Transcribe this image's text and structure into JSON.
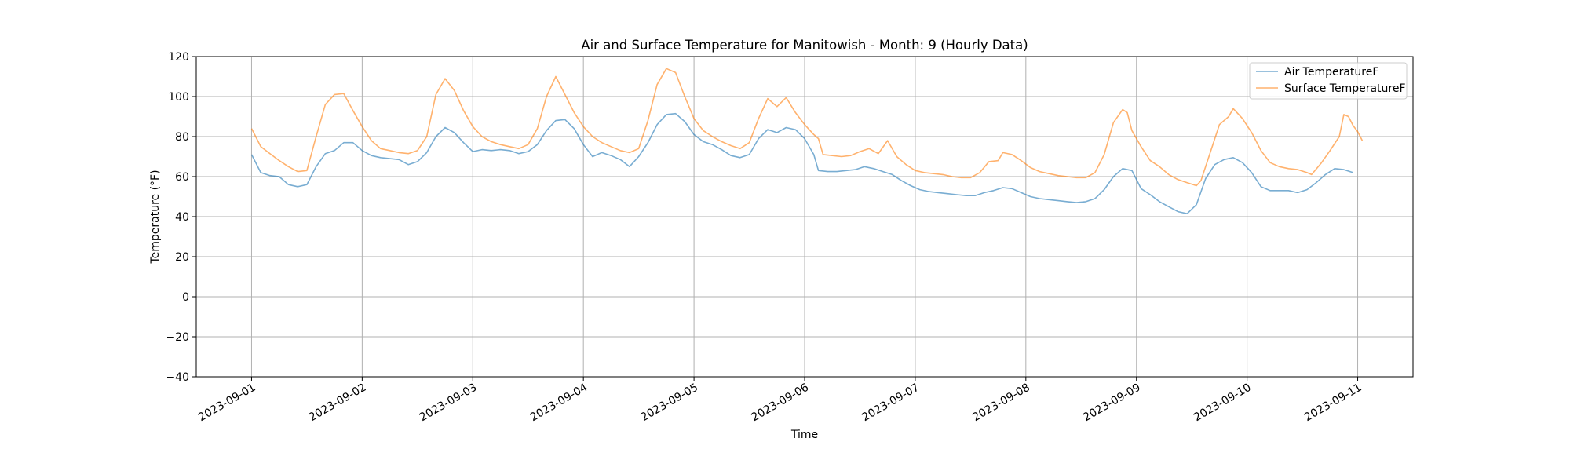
{
  "chart_data": {
    "type": "line",
    "title": "Air and Surface Temperature for Manitowish - Month: 9 (Hourly Data)",
    "xlabel": "Time",
    "ylabel": "Temperature (°F)",
    "xlim": [
      "2023-08-31T12:00",
      "2023-09-11T12:00"
    ],
    "ylim": [
      -40,
      120
    ],
    "yticks": [
      -40,
      -20,
      0,
      20,
      40,
      60,
      80,
      100,
      120
    ],
    "xticks": [
      "2023-09-01",
      "2023-09-02",
      "2023-09-03",
      "2023-09-04",
      "2023-09-05",
      "2023-09-06",
      "2023-09-07",
      "2023-09-08",
      "2023-09-09",
      "2023-09-10",
      "2023-09-11"
    ],
    "grid": true,
    "legend_position": "top-right",
    "series": [
      {
        "name": "Air TemperatureF",
        "color": "#1f77b4",
        "points": [
          [
            "2023-09-01T00:00",
            71
          ],
          [
            "2023-09-01T02:00",
            62
          ],
          [
            "2023-09-01T04:00",
            60.5
          ],
          [
            "2023-09-01T06:00",
            60
          ],
          [
            "2023-09-01T08:00",
            56
          ],
          [
            "2023-09-01T10:00",
            55
          ],
          [
            "2023-09-01T12:00",
            56
          ],
          [
            "2023-09-01T14:00",
            65
          ],
          [
            "2023-09-01T16:00",
            71.5
          ],
          [
            "2023-09-01T18:00",
            73
          ],
          [
            "2023-09-01T20:00",
            77
          ],
          [
            "2023-09-01T22:00",
            77
          ],
          [
            "2023-09-02T00:00",
            73
          ],
          [
            "2023-09-02T02:00",
            70.5
          ],
          [
            "2023-09-02T04:00",
            69.5
          ],
          [
            "2023-09-02T06:00",
            69
          ],
          [
            "2023-09-02T08:00",
            68.5
          ],
          [
            "2023-09-02T10:00",
            66
          ],
          [
            "2023-09-02T12:00",
            67.5
          ],
          [
            "2023-09-02T14:00",
            72
          ],
          [
            "2023-09-02T16:00",
            80
          ],
          [
            "2023-09-02T18:00",
            84.5
          ],
          [
            "2023-09-02T20:00",
            82
          ],
          [
            "2023-09-02T22:00",
            77
          ],
          [
            "2023-09-03T00:00",
            72.5
          ],
          [
            "2023-09-03T02:00",
            73.5
          ],
          [
            "2023-09-03T04:00",
            73
          ],
          [
            "2023-09-03T06:00",
            73.5
          ],
          [
            "2023-09-03T08:00",
            73
          ],
          [
            "2023-09-03T10:00",
            71.5
          ],
          [
            "2023-09-03T12:00",
            72.5
          ],
          [
            "2023-09-03T14:00",
            76
          ],
          [
            "2023-09-03T16:00",
            83
          ],
          [
            "2023-09-03T18:00",
            88
          ],
          [
            "2023-09-03T20:00",
            88.5
          ],
          [
            "2023-09-03T22:00",
            84
          ],
          [
            "2023-09-04T00:00",
            76
          ],
          [
            "2023-09-04T02:00",
            70
          ],
          [
            "2023-09-04T04:00",
            72
          ],
          [
            "2023-09-04T06:00",
            70.5
          ],
          [
            "2023-09-04T08:00",
            68.5
          ],
          [
            "2023-09-04T10:00",
            65
          ],
          [
            "2023-09-04T12:00",
            70
          ],
          [
            "2023-09-04T14:00",
            77
          ],
          [
            "2023-09-04T16:00",
            86
          ],
          [
            "2023-09-04T18:00",
            91
          ],
          [
            "2023-09-04T20:00",
            91.5
          ],
          [
            "2023-09-04T22:00",
            87.5
          ],
          [
            "2023-09-05T00:00",
            81
          ],
          [
            "2023-09-05T02:00",
            77.5
          ],
          [
            "2023-09-05T04:00",
            76
          ],
          [
            "2023-09-05T06:00",
            73.5
          ],
          [
            "2023-09-05T08:00",
            70.5
          ],
          [
            "2023-09-05T10:00",
            69.5
          ],
          [
            "2023-09-05T12:00",
            71
          ],
          [
            "2023-09-05T14:00",
            79
          ],
          [
            "2023-09-05T16:00",
            83.5
          ],
          [
            "2023-09-05T18:00",
            82
          ],
          [
            "2023-09-05T20:00",
            84.5
          ],
          [
            "2023-09-05T22:00",
            83.5
          ],
          [
            "2023-09-06T00:00",
            79
          ],
          [
            "2023-09-06T02:00",
            71
          ],
          [
            "2023-09-06T03:00",
            63
          ],
          [
            "2023-09-06T05:00",
            62.5
          ],
          [
            "2023-09-06T07:00",
            62.5
          ],
          [
            "2023-09-06T09:00",
            63
          ],
          [
            "2023-09-06T11:00",
            63.5
          ],
          [
            "2023-09-06T13:00",
            65
          ],
          [
            "2023-09-06T15:00",
            64
          ],
          [
            "2023-09-06T17:00",
            62.5
          ],
          [
            "2023-09-06T19:00",
            61
          ],
          [
            "2023-09-06T21:00",
            58
          ],
          [
            "2023-09-06T23:00",
            55.5
          ],
          [
            "2023-09-07T01:00",
            53.5
          ],
          [
            "2023-09-07T03:00",
            52.5
          ],
          [
            "2023-09-07T05:00",
            52
          ],
          [
            "2023-09-07T07:00",
            51.5
          ],
          [
            "2023-09-07T09:00",
            51
          ],
          [
            "2023-09-07T11:00",
            50.5
          ],
          [
            "2023-09-07T13:00",
            50.5
          ],
          [
            "2023-09-07T15:00",
            52
          ],
          [
            "2023-09-07T17:00",
            53
          ],
          [
            "2023-09-07T19:00",
            54.5
          ],
          [
            "2023-09-07T21:00",
            54
          ],
          [
            "2023-09-07T23:00",
            52
          ],
          [
            "2023-09-08T01:00",
            50
          ],
          [
            "2023-09-08T03:00",
            49
          ],
          [
            "2023-09-08T05:00",
            48.5
          ],
          [
            "2023-09-08T07:00",
            48
          ],
          [
            "2023-09-08T09:00",
            47.5
          ],
          [
            "2023-09-08T11:00",
            47
          ],
          [
            "2023-09-08T13:00",
            47.5
          ],
          [
            "2023-09-08T15:00",
            49
          ],
          [
            "2023-09-08T17:00",
            53.5
          ],
          [
            "2023-09-08T19:00",
            60
          ],
          [
            "2023-09-08T21:00",
            64
          ],
          [
            "2023-09-08T23:00",
            63
          ],
          [
            "2023-09-09T01:00",
            54
          ],
          [
            "2023-09-09T03:00",
            51
          ],
          [
            "2023-09-09T05:00",
            47.5
          ],
          [
            "2023-09-09T07:00",
            45
          ],
          [
            "2023-09-09T09:00",
            42.5
          ],
          [
            "2023-09-09T11:00",
            41.5
          ],
          [
            "2023-09-09T13:00",
            46
          ],
          [
            "2023-09-09T15:00",
            59
          ],
          [
            "2023-09-09T17:00",
            66
          ],
          [
            "2023-09-09T19:00",
            68.5
          ],
          [
            "2023-09-09T21:00",
            69.5
          ],
          [
            "2023-09-09T23:00",
            67
          ],
          [
            "2023-09-10T01:00",
            62
          ],
          [
            "2023-09-10T03:00",
            55
          ],
          [
            "2023-09-10T05:00",
            53
          ],
          [
            "2023-09-10T07:00",
            53
          ],
          [
            "2023-09-10T09:00",
            53
          ],
          [
            "2023-09-10T11:00",
            52
          ],
          [
            "2023-09-10T13:00",
            53.5
          ],
          [
            "2023-09-10T15:00",
            57
          ],
          [
            "2023-09-10T17:00",
            61
          ],
          [
            "2023-09-10T19:00",
            64
          ],
          [
            "2023-09-10T21:00",
            63.5
          ],
          [
            "2023-09-10T23:00",
            62
          ]
        ]
      },
      {
        "name": "Surface TemperatureF",
        "color": "#ff7f0e",
        "points": [
          [
            "2023-09-01T00:00",
            84
          ],
          [
            "2023-09-01T02:00",
            75
          ],
          [
            "2023-09-01T04:00",
            71.5
          ],
          [
            "2023-09-01T06:00",
            68
          ],
          [
            "2023-09-01T08:00",
            65
          ],
          [
            "2023-09-01T10:00",
            62.5
          ],
          [
            "2023-09-01T12:00",
            63
          ],
          [
            "2023-09-01T14:00",
            80
          ],
          [
            "2023-09-01T16:00",
            96
          ],
          [
            "2023-09-01T18:00",
            101
          ],
          [
            "2023-09-01T20:00",
            101.5
          ],
          [
            "2023-09-01T22:00",
            93
          ],
          [
            "2023-09-02T00:00",
            85
          ],
          [
            "2023-09-02T02:00",
            78
          ],
          [
            "2023-09-02T04:00",
            74
          ],
          [
            "2023-09-02T06:00",
            73
          ],
          [
            "2023-09-02T08:00",
            72
          ],
          [
            "2023-09-02T10:00",
            71.5
          ],
          [
            "2023-09-02T12:00",
            73
          ],
          [
            "2023-09-02T14:00",
            80
          ],
          [
            "2023-09-02T16:00",
            101
          ],
          [
            "2023-09-02T18:00",
            109
          ],
          [
            "2023-09-02T20:00",
            103
          ],
          [
            "2023-09-02T22:00",
            93
          ],
          [
            "2023-09-03T00:00",
            85
          ],
          [
            "2023-09-03T02:00",
            80
          ],
          [
            "2023-09-03T04:00",
            77.5
          ],
          [
            "2023-09-03T06:00",
            76
          ],
          [
            "2023-09-03T08:00",
            75
          ],
          [
            "2023-09-03T10:00",
            74
          ],
          [
            "2023-09-03T12:00",
            76
          ],
          [
            "2023-09-03T14:00",
            84
          ],
          [
            "2023-09-03T16:00",
            100
          ],
          [
            "2023-09-03T18:00",
            110
          ],
          [
            "2023-09-03T20:00",
            101
          ],
          [
            "2023-09-03T22:00",
            92
          ],
          [
            "2023-09-04T00:00",
            85
          ],
          [
            "2023-09-04T02:00",
            80
          ],
          [
            "2023-09-04T04:00",
            77
          ],
          [
            "2023-09-04T06:00",
            75
          ],
          [
            "2023-09-04T08:00",
            73
          ],
          [
            "2023-09-04T10:00",
            72
          ],
          [
            "2023-09-04T12:00",
            74
          ],
          [
            "2023-09-04T14:00",
            88
          ],
          [
            "2023-09-04T16:00",
            106
          ],
          [
            "2023-09-04T18:00",
            114
          ],
          [
            "2023-09-04T20:00",
            112
          ],
          [
            "2023-09-04T22:00",
            100
          ],
          [
            "2023-09-05T00:00",
            89
          ],
          [
            "2023-09-05T02:00",
            83
          ],
          [
            "2023-09-05T04:00",
            80
          ],
          [
            "2023-09-05T06:00",
            77.5
          ],
          [
            "2023-09-05T08:00",
            75.5
          ],
          [
            "2023-09-05T10:00",
            74
          ],
          [
            "2023-09-05T12:00",
            77
          ],
          [
            "2023-09-05T14:00",
            89
          ],
          [
            "2023-09-05T16:00",
            99
          ],
          [
            "2023-09-05T18:00",
            95
          ],
          [
            "2023-09-05T20:00",
            99.5
          ],
          [
            "2023-09-05T22:00",
            92
          ],
          [
            "2023-09-06T00:00",
            86
          ],
          [
            "2023-09-06T02:00",
            81
          ],
          [
            "2023-09-06T03:00",
            79
          ],
          [
            "2023-09-06T04:00",
            71
          ],
          [
            "2023-09-06T06:00",
            70.5
          ],
          [
            "2023-09-06T08:00",
            70
          ],
          [
            "2023-09-06T10:00",
            70.5
          ],
          [
            "2023-09-06T12:00",
            72.5
          ],
          [
            "2023-09-06T14:00",
            74
          ],
          [
            "2023-09-06T16:00",
            71.5
          ],
          [
            "2023-09-06T18:00",
            78
          ],
          [
            "2023-09-06T20:00",
            70
          ],
          [
            "2023-09-06T22:00",
            66
          ],
          [
            "2023-09-07T00:00",
            63
          ],
          [
            "2023-09-07T02:00",
            62
          ],
          [
            "2023-09-07T04:00",
            61.5
          ],
          [
            "2023-09-07T06:00",
            61
          ],
          [
            "2023-09-07T08:00",
            60
          ],
          [
            "2023-09-07T10:00",
            59.5
          ],
          [
            "2023-09-07T12:00",
            59.5
          ],
          [
            "2023-09-07T14:00",
            62
          ],
          [
            "2023-09-07T16:00",
            67.5
          ],
          [
            "2023-09-07T18:00",
            68
          ],
          [
            "2023-09-07T19:00",
            72
          ],
          [
            "2023-09-07T21:00",
            71
          ],
          [
            "2023-09-07T23:00",
            68
          ],
          [
            "2023-09-08T01:00",
            64.5
          ],
          [
            "2023-09-08T03:00",
            62.5
          ],
          [
            "2023-09-08T05:00",
            61.5
          ],
          [
            "2023-09-08T07:00",
            60.5
          ],
          [
            "2023-09-08T09:00",
            60
          ],
          [
            "2023-09-08T11:00",
            59.5
          ],
          [
            "2023-09-08T13:00",
            59.5
          ],
          [
            "2023-09-08T15:00",
            62
          ],
          [
            "2023-09-08T17:00",
            71
          ],
          [
            "2023-09-08T19:00",
            87
          ],
          [
            "2023-09-08T21:00",
            93.5
          ],
          [
            "2023-09-08T22:00",
            92
          ],
          [
            "2023-09-08T23:00",
            83
          ],
          [
            "2023-09-09T01:00",
            75
          ],
          [
            "2023-09-09T03:00",
            68
          ],
          [
            "2023-09-09T05:00",
            65
          ],
          [
            "2023-09-09T07:00",
            61
          ],
          [
            "2023-09-09T09:00",
            58.5
          ],
          [
            "2023-09-09T11:00",
            57
          ],
          [
            "2023-09-09T13:00",
            55.5
          ],
          [
            "2023-09-09T14:00",
            58
          ],
          [
            "2023-09-09T16:00",
            72
          ],
          [
            "2023-09-09T18:00",
            86
          ],
          [
            "2023-09-09T20:00",
            90
          ],
          [
            "2023-09-09T21:00",
            94
          ],
          [
            "2023-09-09T23:00",
            89
          ],
          [
            "2023-09-10T01:00",
            82
          ],
          [
            "2023-09-10T03:00",
            73
          ],
          [
            "2023-09-10T05:00",
            67
          ],
          [
            "2023-09-10T07:00",
            65
          ],
          [
            "2023-09-10T09:00",
            64
          ],
          [
            "2023-09-10T11:00",
            63.5
          ],
          [
            "2023-09-10T13:00",
            62
          ],
          [
            "2023-09-10T14:00",
            61
          ],
          [
            "2023-09-10T16:00",
            66.5
          ],
          [
            "2023-09-10T18:00",
            73
          ],
          [
            "2023-09-10T20:00",
            80
          ],
          [
            "2023-09-10T21:00",
            91
          ],
          [
            "2023-09-10T22:00",
            90
          ],
          [
            "2023-09-10T23:00",
            85.5
          ],
          [
            "2023-09-11T00:00",
            82.5
          ],
          [
            "2023-09-11T01:00",
            78
          ]
        ]
      }
    ]
  }
}
